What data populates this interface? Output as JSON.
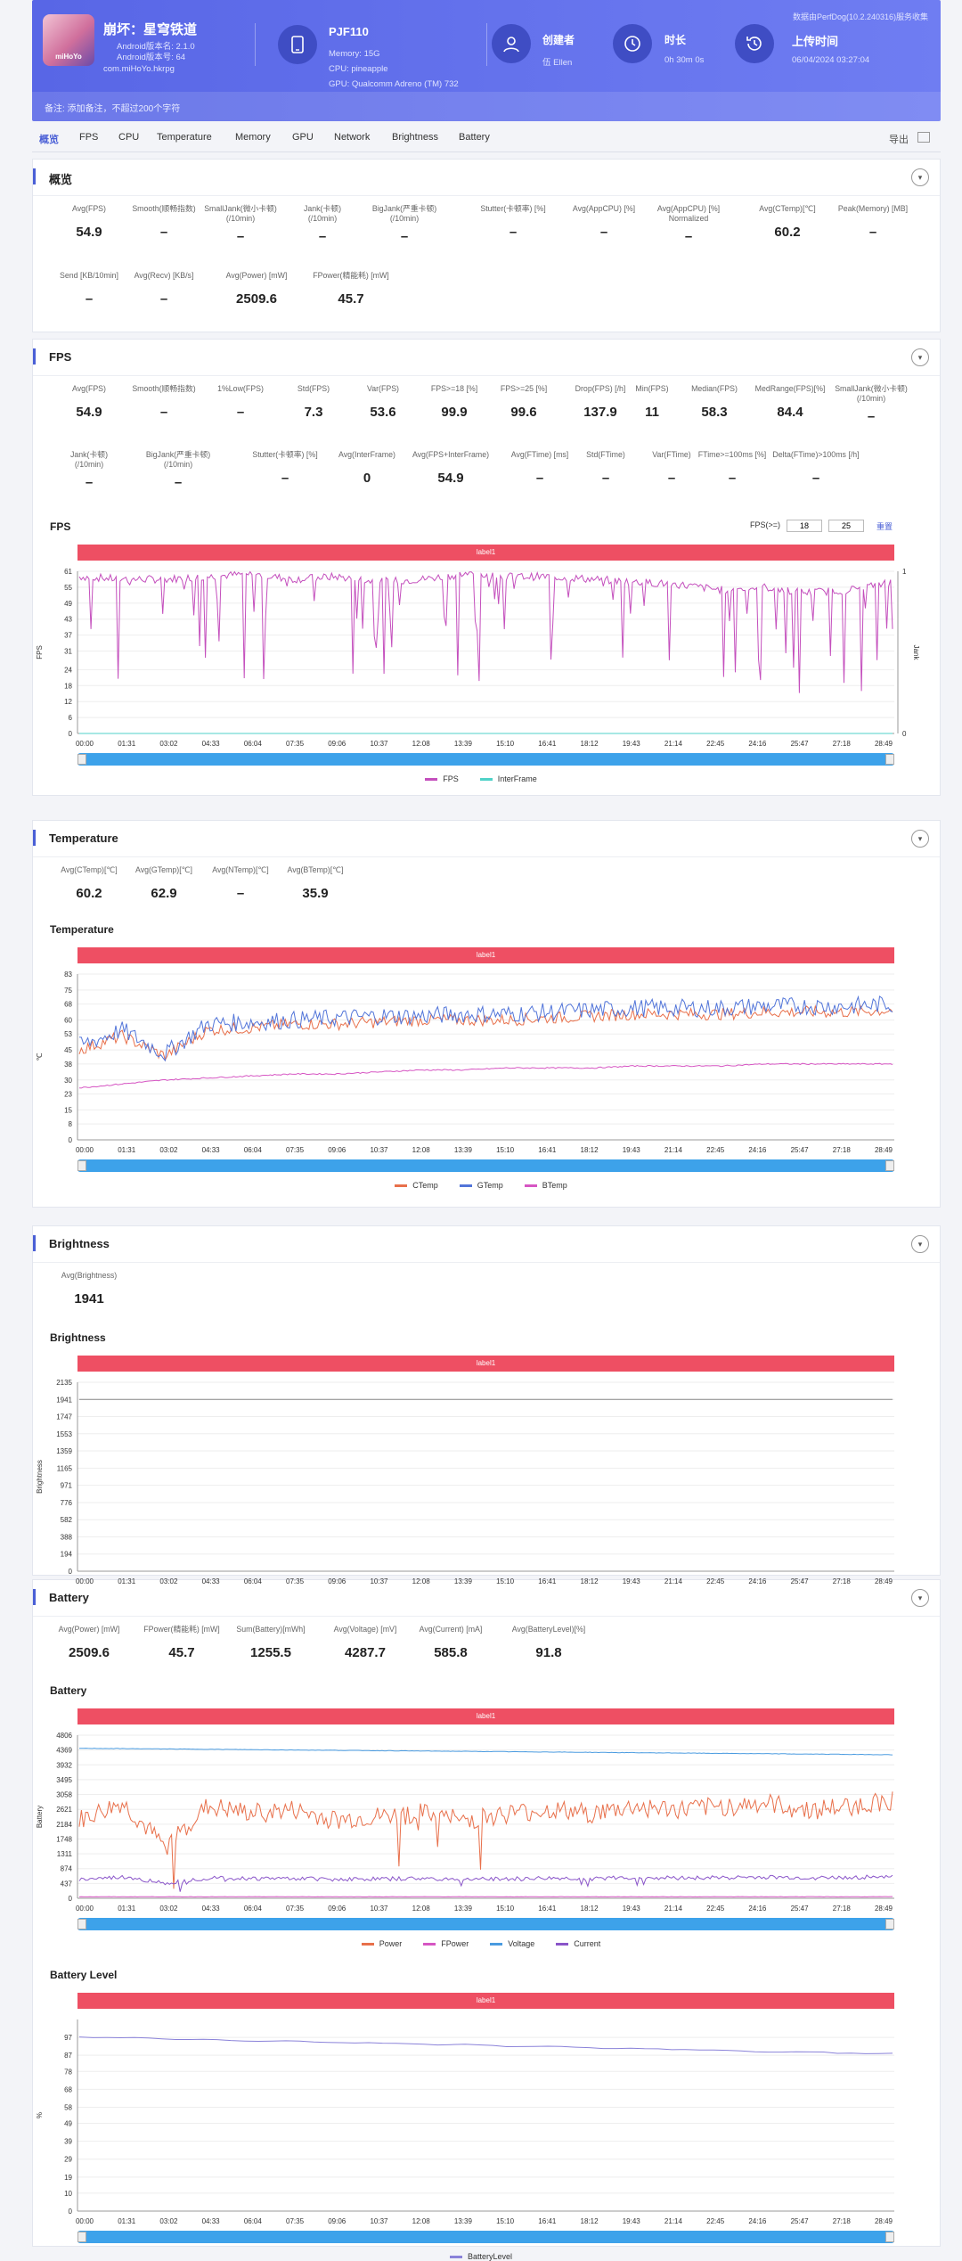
{
  "header": {
    "app_name": "崩坏：星穹铁道",
    "android_version": "Android版本名: 2.1.0",
    "android_code": "Android版本号: 64",
    "package": "com.miHoYo.hkrpg",
    "logo_text": "miHoYo",
    "device": {
      "model": "PJF110",
      "memory": "Memory: 15G",
      "cpu": "CPU: pineapple",
      "gpu": "GPU: Qualcomm Adreno (TM) 732"
    },
    "creator": {
      "label": "创建者",
      "value": "伍 Ellen"
    },
    "duration": {
      "label": "时长",
      "value": "0h 30m 0s"
    },
    "upload": {
      "label": "上传时间",
      "value": "06/04/2024 03:27:04"
    },
    "source": "数据由PerfDog(10.2.240316)服务收集",
    "note": "备注: 添加备注，不超过200个字符"
  },
  "nav": {
    "tabs": [
      "概览",
      "FPS",
      "CPU",
      "Temperature",
      "Memory",
      "GPU",
      "Network",
      "Brightness",
      "Battery"
    ],
    "export": "导出"
  },
  "overview": {
    "title": "概览",
    "metrics": [
      {
        "l": "Avg(FPS)",
        "v": "54.9"
      },
      {
        "l": "Smooth(顺畅指数)",
        "v": "–"
      },
      {
        "l": "SmallJank(微小卡顿)\n(/10min)",
        "v": "–"
      },
      {
        "l": "Jank(卡顿)\n(/10min)",
        "v": "–"
      },
      {
        "l": "BigJank(严重卡顿)\n(/10min)",
        "v": "–"
      },
      {
        "l": "Stutter(卡顿率) [%]",
        "v": "–"
      },
      {
        "l": "Avg(AppCPU) [%]",
        "v": "–"
      },
      {
        "l": "Avg(AppCPU) [%]\nNormalized",
        "v": "–"
      },
      {
        "l": "Avg(CTemp)[℃]",
        "v": "60.2"
      },
      {
        "l": "Peak(Memory) [MB]",
        "v": "–"
      },
      {
        "l": "Send [KB/10min]",
        "v": "–"
      },
      {
        "l": "Avg(Recv) [KB/s]",
        "v": "–"
      },
      {
        "l": "Avg(Power) [mW]",
        "v": "2509.6"
      },
      {
        "l": "FPower(精能耗) [mW]",
        "v": "45.7"
      }
    ]
  },
  "fps": {
    "title": "FPS",
    "metrics": [
      {
        "l": "Avg(FPS)",
        "v": "54.9"
      },
      {
        "l": "Smooth(顺畅指数)",
        "v": "–"
      },
      {
        "l": "1%Low(FPS)",
        "v": "–"
      },
      {
        "l": "Std(FPS)",
        "v": "7.3"
      },
      {
        "l": "Var(FPS)",
        "v": "53.6"
      },
      {
        "l": "FPS>=18 [%]",
        "v": "99.9"
      },
      {
        "l": "FPS>=25 [%]",
        "v": "99.6"
      },
      {
        "l": "Drop(FPS) [/h]",
        "v": "137.9"
      },
      {
        "l": "Min(FPS)",
        "v": "11"
      },
      {
        "l": "Median(FPS)",
        "v": "58.3"
      },
      {
        "l": "MedRange(FPS)[%]",
        "v": "84.4"
      },
      {
        "l": "SmallJank(微小卡顿)\n(/10min)",
        "v": "–"
      },
      {
        "l": "Jank(卡顿)\n(/10min)",
        "v": "–"
      },
      {
        "l": "BigJank(严重卡顿)\n(/10min)",
        "v": "–"
      },
      {
        "l": "Stutter(卡顿率) [%]",
        "v": "–"
      },
      {
        "l": "Avg(InterFrame)",
        "v": "0"
      },
      {
        "l": "Avg(FPS+InterFrame)",
        "v": "54.9"
      },
      {
        "l": "Avg(FTime) [ms]",
        "v": "–"
      },
      {
        "l": "Std(FTime)",
        "v": "–"
      },
      {
        "l": "Var(FTime)",
        "v": "–"
      },
      {
        "l": "FTime>=100ms [%]",
        "v": "–"
      },
      {
        "l": "Delta(FTime)>100ms [/h]",
        "v": "–"
      }
    ],
    "chart_title": "FPS",
    "fps_filter_label": "FPS(>=)",
    "fps_filter_values": [
      "18",
      "25"
    ],
    "reset": "重置"
  },
  "temperature": {
    "title": "Temperature",
    "metrics": [
      {
        "l": "Avg(CTemp)[℃]",
        "v": "60.2"
      },
      {
        "l": "Avg(GTemp)[℃]",
        "v": "62.9"
      },
      {
        "l": "Avg(NTemp)[℃]",
        "v": "–"
      },
      {
        "l": "Avg(BTemp)[℃]",
        "v": "35.9"
      }
    ],
    "chart_title": "Temperature"
  },
  "brightness": {
    "title": "Brightness",
    "metrics": [
      {
        "l": "Avg(Brightness)",
        "v": "1941"
      }
    ],
    "chart_title": "Brightness"
  },
  "battery": {
    "title": "Battery",
    "metrics": [
      {
        "l": "Avg(Power) [mW]",
        "v": "2509.6"
      },
      {
        "l": "FPower(精能耗) [mW]",
        "v": "45.7"
      },
      {
        "l": "Sum(Battery)[mWh]",
        "v": "1255.5"
      },
      {
        "l": "Avg(Voltage) [mV]",
        "v": "4287.7"
      },
      {
        "l": "Avg(Current) [mA]",
        "v": "585.8"
      },
      {
        "l": "Avg(BatteryLevel)[%]",
        "v": "91.8"
      }
    ],
    "chart_title": "Battery",
    "level_title": "Battery Level"
  },
  "chart_data": [
    {
      "type": "line",
      "title": "FPS",
      "band_label": "label1",
      "ylabel": "FPS",
      "y2label": "Jank",
      "ylim": [
        0,
        61
      ],
      "yticks": [
        "0",
        "6",
        "12",
        "18",
        "24",
        "31",
        "37",
        "43",
        "49",
        "55",
        "61"
      ],
      "y2ticks": [
        "0",
        "1"
      ],
      "x": [
        "00:00",
        "01:31",
        "03:02",
        "04:33",
        "06:04",
        "07:35",
        "09:06",
        "10:37",
        "12:08",
        "13:39",
        "15:10",
        "16:41",
        "18:12",
        "19:43",
        "21:14",
        "22:45",
        "24:16",
        "25:47",
        "27:18",
        "28:49"
      ],
      "series": [
        {
          "name": "FPS",
          "color": "#c44fbd",
          "approx": "mostly 57–60 with frequent dips; min 11 around 19:43",
          "values": [
            59,
            58,
            58,
            59,
            60,
            58,
            59,
            57,
            58,
            60,
            59,
            59,
            58,
            57,
            56,
            54,
            55,
            53,
            54,
            57
          ]
        },
        {
          "name": "InterFrame",
          "color": "#4fd2c8",
          "values": [
            0,
            0,
            0,
            0,
            0,
            0,
            0,
            0,
            0,
            0,
            0,
            0,
            0,
            0,
            0,
            0,
            0,
            0,
            0,
            0
          ]
        }
      ]
    },
    {
      "type": "line",
      "title": "Temperature",
      "band_label": "label1",
      "ylabel": "℃",
      "yticks": [
        "0",
        "8",
        "15",
        "23",
        "30",
        "38",
        "45",
        "53",
        "60",
        "68",
        "75",
        "83"
      ],
      "ylim": [
        0,
        83
      ],
      "x": [
        "00:00",
        "01:31",
        "03:02",
        "04:33",
        "06:04",
        "07:35",
        "09:06",
        "10:37",
        "12:08",
        "13:39",
        "15:10",
        "16:41",
        "18:12",
        "19:43",
        "21:14",
        "22:45",
        "24:16",
        "25:47",
        "27:18",
        "28:49"
      ],
      "series": [
        {
          "name": "CTemp",
          "color": "#e8704b",
          "values": [
            45,
            52,
            42,
            55,
            56,
            58,
            58,
            59,
            60,
            60,
            60,
            61,
            62,
            63,
            63,
            63,
            64,
            64,
            64,
            65
          ]
        },
        {
          "name": "GTemp",
          "color": "#5275d9",
          "values": [
            47,
            55,
            43,
            58,
            59,
            60,
            61,
            62,
            62,
            63,
            63,
            64,
            65,
            66,
            66,
            66,
            67,
            67,
            67,
            68
          ]
        },
        {
          "name": "BTemp",
          "color": "#d656c3",
          "values": [
            26,
            28,
            30,
            31,
            32,
            33,
            33,
            34,
            35,
            35,
            36,
            36,
            36,
            37,
            37,
            37,
            38,
            38,
            38,
            38
          ]
        }
      ]
    },
    {
      "type": "line",
      "title": "Brightness",
      "band_label": "label1",
      "ylabel": "Brightness",
      "yticks": [
        "0",
        "194",
        "388",
        "582",
        "776",
        "971",
        "1165",
        "1359",
        "1553",
        "1747",
        "1941",
        "2135"
      ],
      "ylim": [
        0,
        2135
      ],
      "x": [
        "00:00",
        "01:31",
        "03:02",
        "04:33",
        "06:04",
        "07:35",
        "09:06",
        "10:37",
        "12:08",
        "13:39",
        "15:10",
        "16:41",
        "18:12",
        "19:43",
        "21:14",
        "22:45",
        "24:16",
        "25:47",
        "27:18",
        "28:49"
      ],
      "series": [
        {
          "name": "Brightness",
          "color": "#888888",
          "values": [
            1941,
            1941,
            1941,
            1941,
            1941,
            1941,
            1941,
            1941,
            1941,
            1941,
            1941,
            1941,
            1941,
            1941,
            1941,
            1941,
            1941,
            1941,
            1941,
            1941
          ]
        }
      ]
    },
    {
      "type": "line",
      "title": "Battery",
      "band_label": "label1",
      "ylabel": "Battery",
      "yticks": [
        "0",
        "437",
        "874",
        "1311",
        "1748",
        "2184",
        "2621",
        "3058",
        "3495",
        "3932",
        "4369",
        "4806"
      ],
      "ylim": [
        0,
        4806
      ],
      "x": [
        "00:00",
        "01:31",
        "03:02",
        "04:33",
        "06:04",
        "07:35",
        "09:06",
        "10:37",
        "12:08",
        "13:39",
        "15:10",
        "16:41",
        "18:12",
        "19:43",
        "21:14",
        "22:45",
        "24:16",
        "25:47",
        "27:18",
        "28:49"
      ],
      "series": [
        {
          "name": "Power",
          "color": "#e8704b",
          "values": [
            2300,
            2800,
            1500,
            2700,
            2500,
            2600,
            2300,
            2400,
            2500,
            2300,
            2500,
            2600,
            2500,
            2700,
            2600,
            2700,
            2800,
            2600,
            2700,
            2900
          ]
        },
        {
          "name": "FPower",
          "color": "#d656c3",
          "values": [
            45,
            45,
            45,
            45,
            45,
            45,
            45,
            45,
            45,
            45,
            45,
            45,
            45,
            45,
            45,
            45,
            45,
            45,
            45,
            45
          ]
        },
        {
          "name": "Voltage",
          "color": "#4a9be0",
          "values": [
            4420,
            4410,
            4400,
            4390,
            4380,
            4370,
            4360,
            4350,
            4340,
            4330,
            4320,
            4310,
            4300,
            4290,
            4280,
            4270,
            4260,
            4250,
            4240,
            4230
          ]
        },
        {
          "name": "Current",
          "color": "#8a55c9",
          "values": [
            550,
            620,
            450,
            600,
            580,
            590,
            560,
            570,
            580,
            560,
            570,
            590,
            580,
            610,
            600,
            610,
            620,
            600,
            610,
            650
          ]
        }
      ]
    },
    {
      "type": "line",
      "title": "Battery Level",
      "band_label": "label1",
      "ylabel": "%",
      "yticks": [
        "0",
        "10",
        "19",
        "29",
        "39",
        "49",
        "58",
        "68",
        "78",
        "87",
        "97"
      ],
      "ylim": [
        0,
        107
      ],
      "x": [
        "00:00",
        "01:31",
        "03:02",
        "04:33",
        "06:04",
        "07:35",
        "09:06",
        "10:37",
        "12:08",
        "13:39",
        "15:10",
        "16:41",
        "18:12",
        "19:43",
        "21:14",
        "22:45",
        "24:16",
        "25:47",
        "27:18",
        "28:49"
      ],
      "series": [
        {
          "name": "BatteryLevel",
          "color": "#8a82d9",
          "values": [
            97,
            97,
            96,
            96,
            95,
            95,
            94,
            94,
            93,
            93,
            92,
            92,
            91,
            91,
            90,
            90,
            89,
            89,
            88,
            88
          ]
        }
      ]
    }
  ]
}
